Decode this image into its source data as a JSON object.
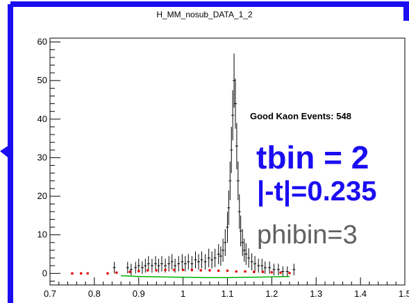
{
  "colors": {
    "frame": "#1a0df2",
    "data": "#000000",
    "red_series": "#e60000",
    "green_series": "#00b000",
    "label_blue": "#1a0df2",
    "label_gray": "#606060"
  },
  "chart_data": {
    "type": "histogram",
    "title": "H_MM_nosub_DATA_1_2",
    "xlabel": "",
    "ylabel": "",
    "xlim": [
      0.7,
      1.5
    ],
    "ylim": [
      -3,
      61
    ],
    "x_ticks": [
      "0.7",
      "0.8",
      "0.9",
      "1",
      "1.1",
      "1.2",
      "1.3",
      "1.4",
      "1.5"
    ],
    "y_ticks": [
      "0",
      "10",
      "20",
      "30",
      "40",
      "50",
      "60"
    ],
    "grid": false,
    "legend": "none",
    "series": [
      {
        "style": "black error-bar histogram",
        "x": [
          0.845,
          0.875,
          0.883,
          0.893,
          0.9,
          0.908,
          0.915,
          0.922,
          0.93,
          0.938,
          0.945,
          0.952,
          0.96,
          0.968,
          0.975,
          0.982,
          0.99,
          0.998,
          1.005,
          1.012,
          1.02,
          1.028,
          1.035,
          1.042,
          1.05,
          1.058,
          1.065,
          1.072,
          1.08,
          1.085,
          1.09,
          1.095,
          1.1,
          1.103,
          1.106,
          1.109,
          1.112,
          1.115,
          1.118,
          1.121,
          1.124,
          1.127,
          1.13,
          1.134,
          1.138,
          1.142,
          1.148,
          1.155,
          1.162,
          1.17,
          1.178,
          1.185,
          1.195,
          1.205,
          1.215,
          1.225,
          1.235,
          1.25
        ],
        "y": [
          1.5,
          1.5,
          1.0,
          1.5,
          2.0,
          1.5,
          2.0,
          2.5,
          2.0,
          2.5,
          2.0,
          2.5,
          2.0,
          2.5,
          3.0,
          2.0,
          2.5,
          3.0,
          2.5,
          3.0,
          2.5,
          3.5,
          3.0,
          3.5,
          3.0,
          4.0,
          3.5,
          4.0,
          5.0,
          4.5,
          6.0,
          8.0,
          12.0,
          17.0,
          24.0,
          32.0,
          41.0,
          50.0,
          44.0,
          33.0,
          24.0,
          16.0,
          11.0,
          8.0,
          6.0,
          5.0,
          4.0,
          3.0,
          2.5,
          2.0,
          2.0,
          1.5,
          1.5,
          1.0,
          1.0,
          0.5,
          0.5,
          1.0
        ],
        "err": [
          1.5,
          1.5,
          1.5,
          1.5,
          1.8,
          1.6,
          1.8,
          2.0,
          1.8,
          2.0,
          1.8,
          2.0,
          1.8,
          2.0,
          2.0,
          1.8,
          2.0,
          2.0,
          2.0,
          2.0,
          2.0,
          2.2,
          2.0,
          2.2,
          2.0,
          2.4,
          2.2,
          2.4,
          2.6,
          2.5,
          3.0,
          3.5,
          4.0,
          4.5,
          5.0,
          6.0,
          6.5,
          7.0,
          6.5,
          6.0,
          5.0,
          4.5,
          4.0,
          3.5,
          3.0,
          2.8,
          2.5,
          2.2,
          2.0,
          1.8,
          1.8,
          1.6,
          1.6,
          1.5,
          1.5,
          1.3,
          1.3,
          1.5
        ]
      },
      {
        "style": "red markers",
        "x": [
          0.75,
          0.77,
          0.785,
          0.83,
          0.85,
          0.88,
          0.9,
          0.92,
          0.94,
          0.96,
          0.98,
          1.0,
          1.02,
          1.04,
          1.06,
          1.08,
          1.1,
          1.12,
          1.14,
          1.16,
          1.18,
          1.2,
          1.22,
          1.24
        ],
        "y": [
          0,
          0,
          0,
          0,
          0.2,
          0.4,
          0.6,
          0.8,
          0.8,
          0.9,
          0.9,
          0.9,
          0.9,
          0.8,
          0.8,
          0.7,
          0.7,
          0.5,
          0.5,
          0.4,
          0.4,
          0.3,
          0.2,
          0.1
        ]
      },
      {
        "style": "green line",
        "x": [
          0.86,
          0.9,
          0.95,
          1.0,
          1.05,
          1.1,
          1.15,
          1.2,
          1.24
        ],
        "y": [
          -0.6,
          -0.8,
          -0.9,
          -1.0,
          -1.1,
          -1.1,
          -1.0,
          -0.9,
          -0.8
        ]
      }
    ]
  },
  "annotations": {
    "good_kaon_events": "Good Kaon Events: 548",
    "tbin": "tbin = 2",
    "abs_t": "|-t|=0.235",
    "phibin": "phibin=3"
  }
}
